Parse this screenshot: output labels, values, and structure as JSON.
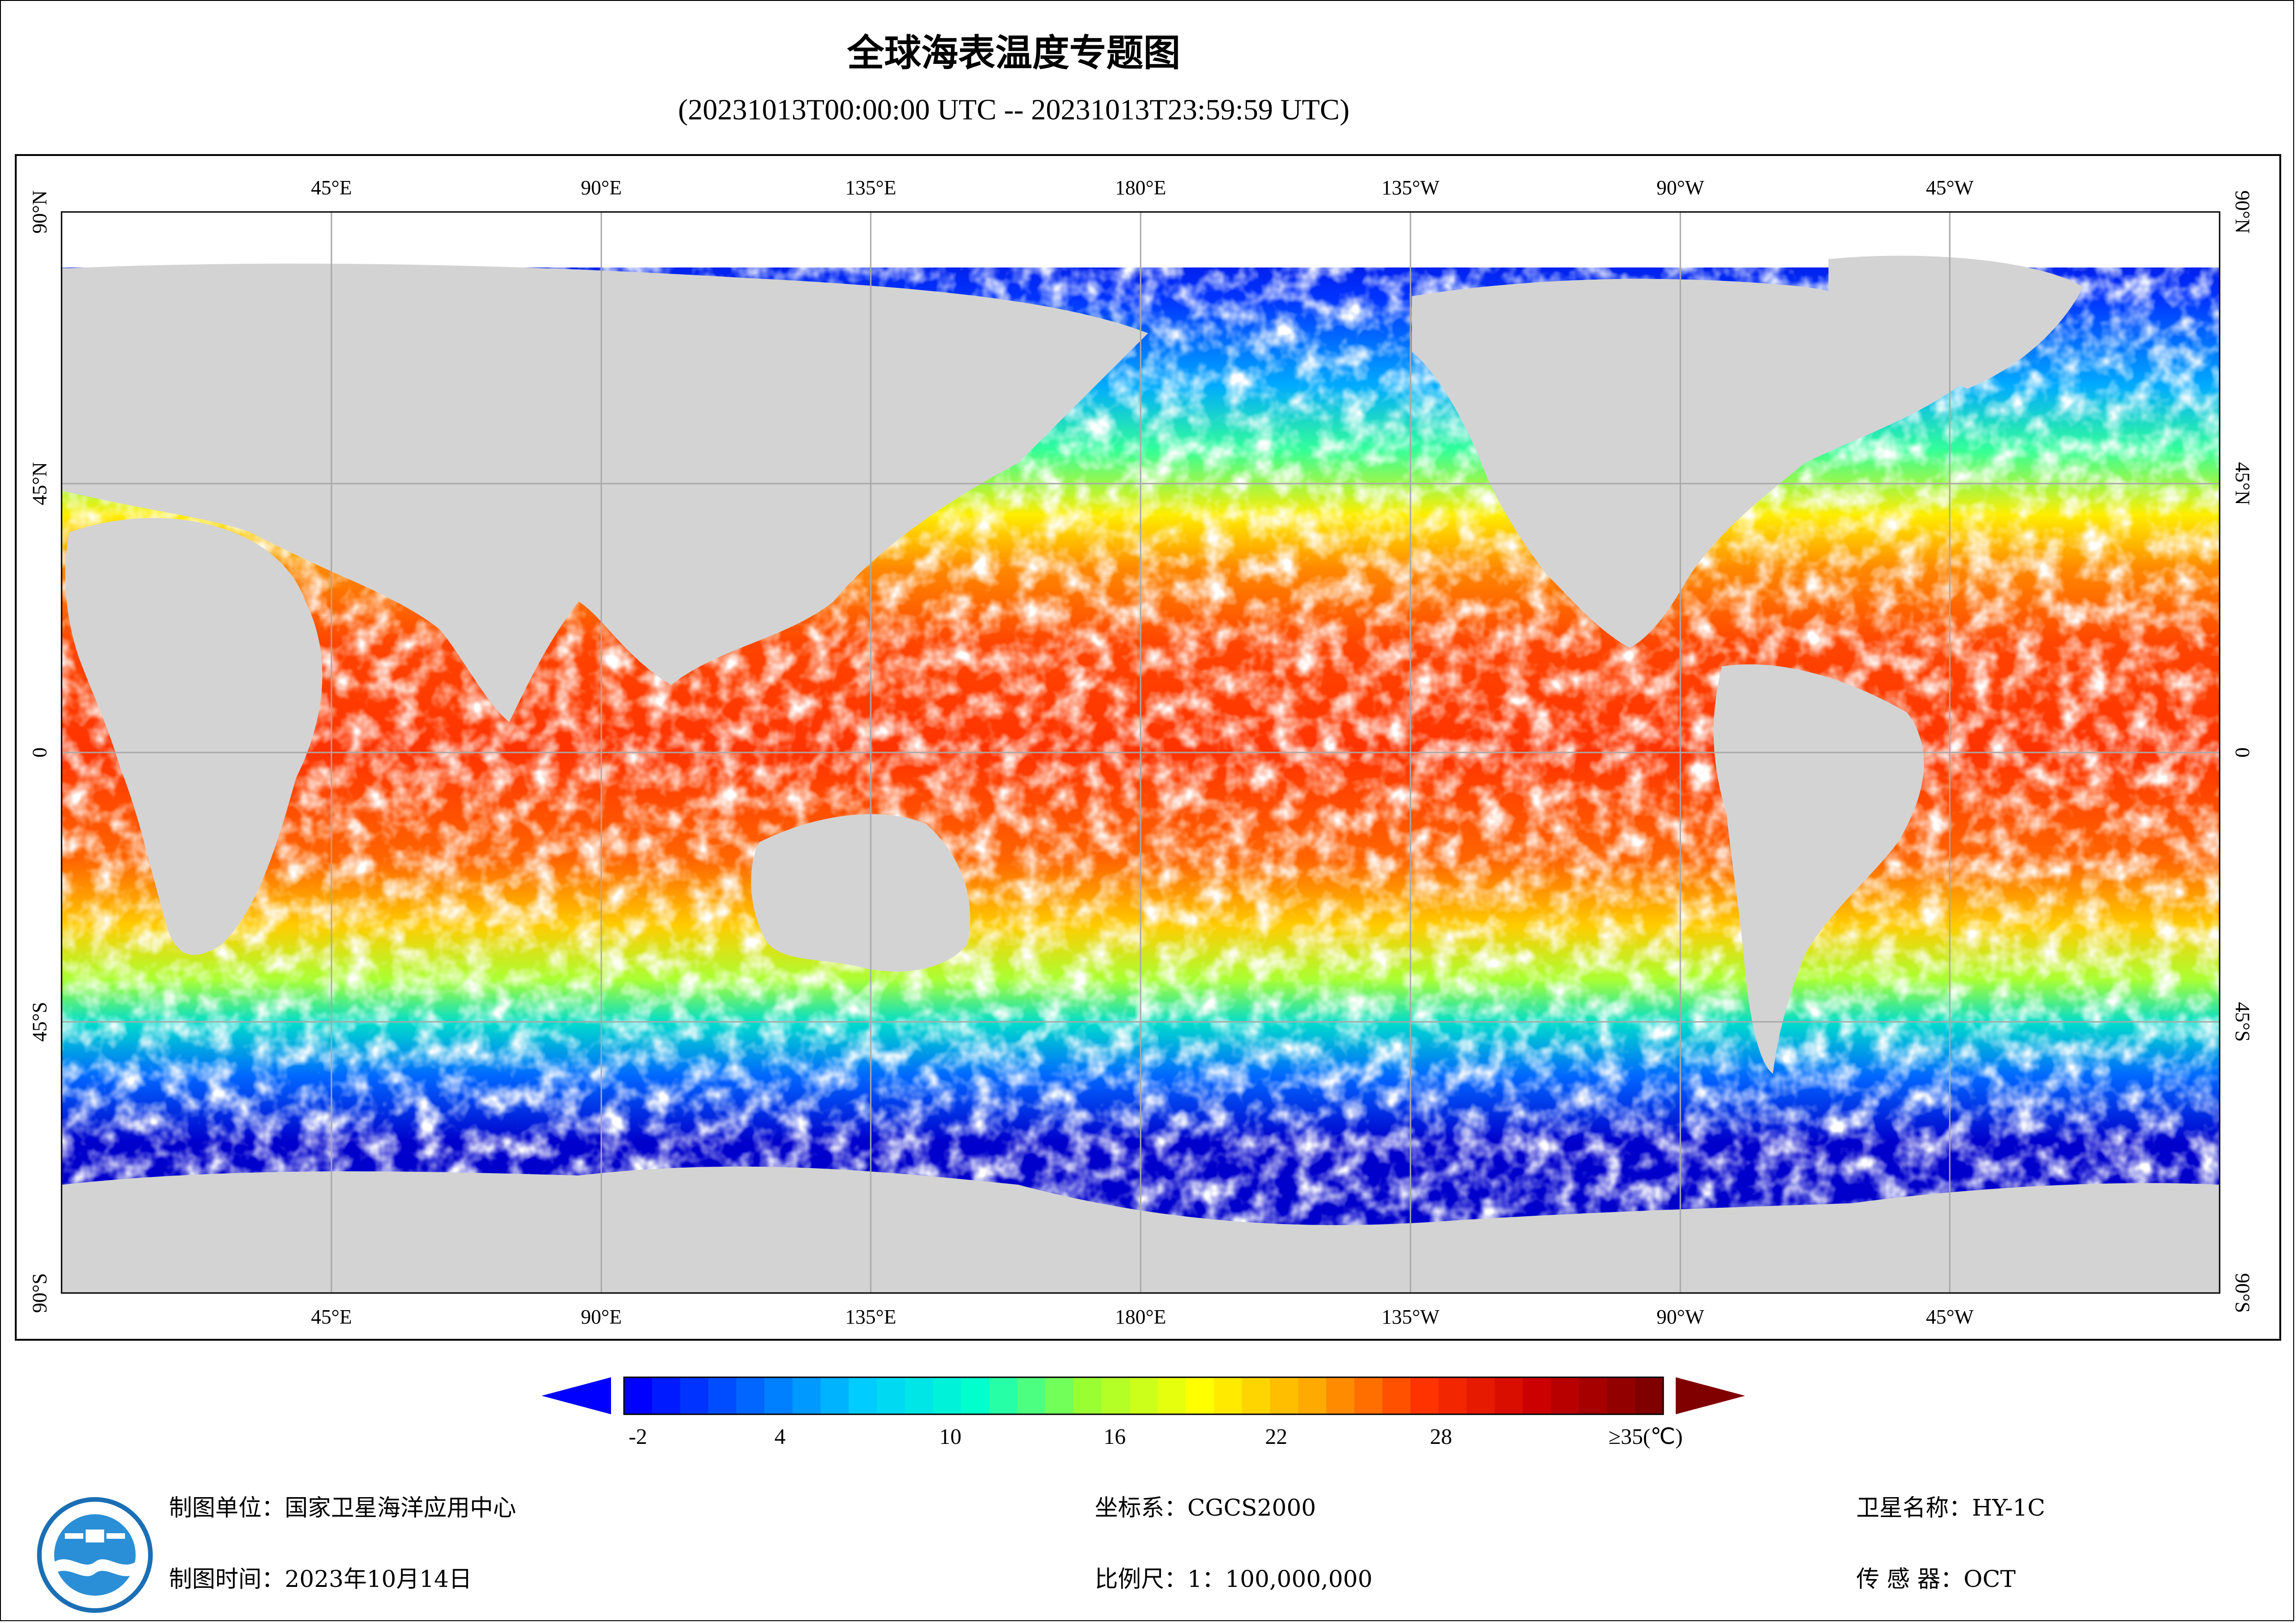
{
  "title": "全球海表温度专题图",
  "subtitle": "(20231013T00:00:00 UTC -- 20231013T23:59:59 UTC)",
  "map": {
    "top_lon_labels": [
      "45°E",
      "90°E",
      "135°E",
      "180°E",
      "135°W",
      "90°W",
      "45°W"
    ],
    "bottom_lon_labels": [
      "45°E",
      "90°E",
      "135°E",
      "180°E",
      "135°W",
      "90°W",
      "45°W"
    ],
    "left_lat_labels": [
      "90°N",
      "45°N",
      "0",
      "45°S",
      "90°S"
    ],
    "right_lat_labels": [
      "90°N",
      "45°N",
      "0",
      "45°S",
      "90°S"
    ],
    "colors": {
      "land": "#d3d3d3",
      "no_data": "#ffffff",
      "grid": "#a8a8a8"
    }
  },
  "colorbar": {
    "labels": [
      "-2",
      "4",
      "10",
      "16",
      "22",
      "28",
      "≥35(℃)"
    ],
    "min_arrow_color": "#0000ff",
    "max_arrow_color": "#800000",
    "gradient": [
      "#0000ff",
      "#0066ff",
      "#00ccff",
      "#00ffcc",
      "#99ff33",
      "#ffff00",
      "#ffaa00",
      "#ff3300",
      "#cc0000",
      "#800000"
    ]
  },
  "footer": {
    "unit": "制图单位：国家卫星海洋应用中心",
    "time": "制图时间：2023年10月14日",
    "crs": "坐标系：CGCS2000",
    "scale": "比例尺：1：100,000,000",
    "satellite": "卫星名称：HY-1C",
    "sensor": "传 感 器：OCT"
  }
}
